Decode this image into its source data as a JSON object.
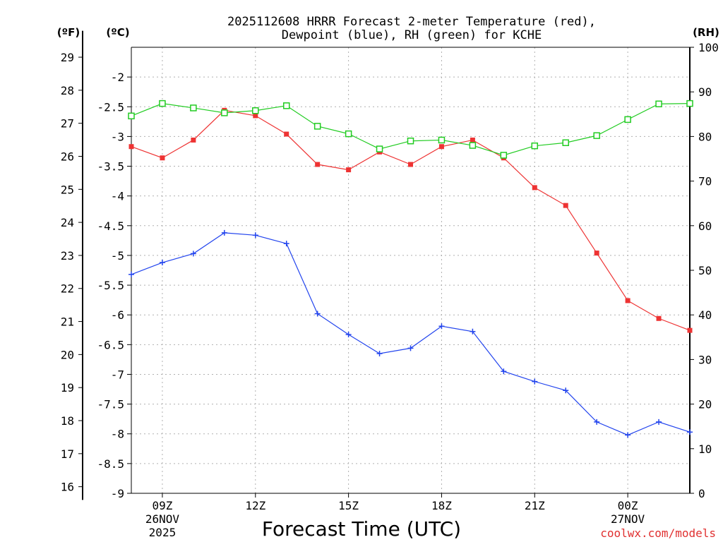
{
  "chart_data": {
    "type": "line",
    "title_line1": "2025112608 HRRR Forecast 2-meter Temperature (red),",
    "title_line2": "Dewpoint (blue), RH (green) for KCHE",
    "xlabel": "Forecast Time (UTC)",
    "credit": "coolwx.com/models",
    "units": {
      "fahrenheit": "(ºF)",
      "celsius": "(ºC)",
      "rh": "(RH)"
    },
    "hours": [
      8,
      9,
      10,
      11,
      12,
      13,
      14,
      15,
      16,
      17,
      18,
      19,
      20,
      21,
      22,
      23,
      24,
      25,
      26
    ],
    "x_ticks": [
      {
        "hour": 9,
        "label": "09Z",
        "date": "26NOV",
        "year": "2025"
      },
      {
        "hour": 12,
        "label": "12Z"
      },
      {
        "hour": 15,
        "label": "15Z"
      },
      {
        "hour": 18,
        "label": "18Z"
      },
      {
        "hour": 21,
        "label": "21Z"
      },
      {
        "hour": 24,
        "label": "00Z",
        "date": "27NOV"
      }
    ],
    "celsius_ylim": [
      -9,
      -1.5
    ],
    "celsius_ticks": [
      "-2",
      "-2.5",
      "-3",
      "-3.5",
      "-4",
      "-4.5",
      "-5",
      "-5.5",
      "-6",
      "-6.5",
      "-7",
      "-7.5",
      "-8",
      "-8.5",
      "-9"
    ],
    "fahrenheit_ticks": [
      "29",
      "28",
      "27",
      "26",
      "25",
      "24",
      "23",
      "22",
      "21",
      "20",
      "19",
      "18",
      "17",
      "16"
    ],
    "rh_ylim": [
      0,
      100
    ],
    "rh_ticks": [
      "100",
      "90",
      "80",
      "70",
      "60",
      "50",
      "40",
      "30",
      "20",
      "10",
      "0"
    ],
    "series": [
      {
        "name": "Temperature",
        "axis": "celsius",
        "color": "#ee3333",
        "marker": "filled-square",
        "values": [
          -3.17,
          -3.36,
          -3.06,
          -2.56,
          -2.65,
          -2.96,
          -3.47,
          -3.56,
          -3.26,
          -3.47,
          -3.17,
          -3.06,
          -3.36,
          -3.86,
          -4.16,
          -4.96,
          -5.76,
          -6.06,
          -6.26
        ]
      },
      {
        "name": "Dewpoint",
        "axis": "celsius",
        "color": "#2244ee",
        "marker": "plus",
        "values": [
          -5.32,
          -5.12,
          -4.97,
          -4.62,
          -4.66,
          -4.8,
          -5.98,
          -6.33,
          -6.65,
          -6.56,
          -6.19,
          -6.28,
          -6.95,
          -7.12,
          -7.27,
          -7.8,
          -8.02,
          -7.8,
          -7.97
        ]
      },
      {
        "name": "RH",
        "axis": "rh",
        "color": "#22cc22",
        "marker": "open-square",
        "values": [
          84.6,
          87.4,
          86.4,
          85.3,
          85.8,
          86.9,
          82.3,
          80.6,
          77.2,
          79.0,
          79.2,
          78.0,
          75.8,
          77.9,
          78.6,
          80.2,
          83.8,
          87.3,
          87.4
        ]
      }
    ]
  }
}
